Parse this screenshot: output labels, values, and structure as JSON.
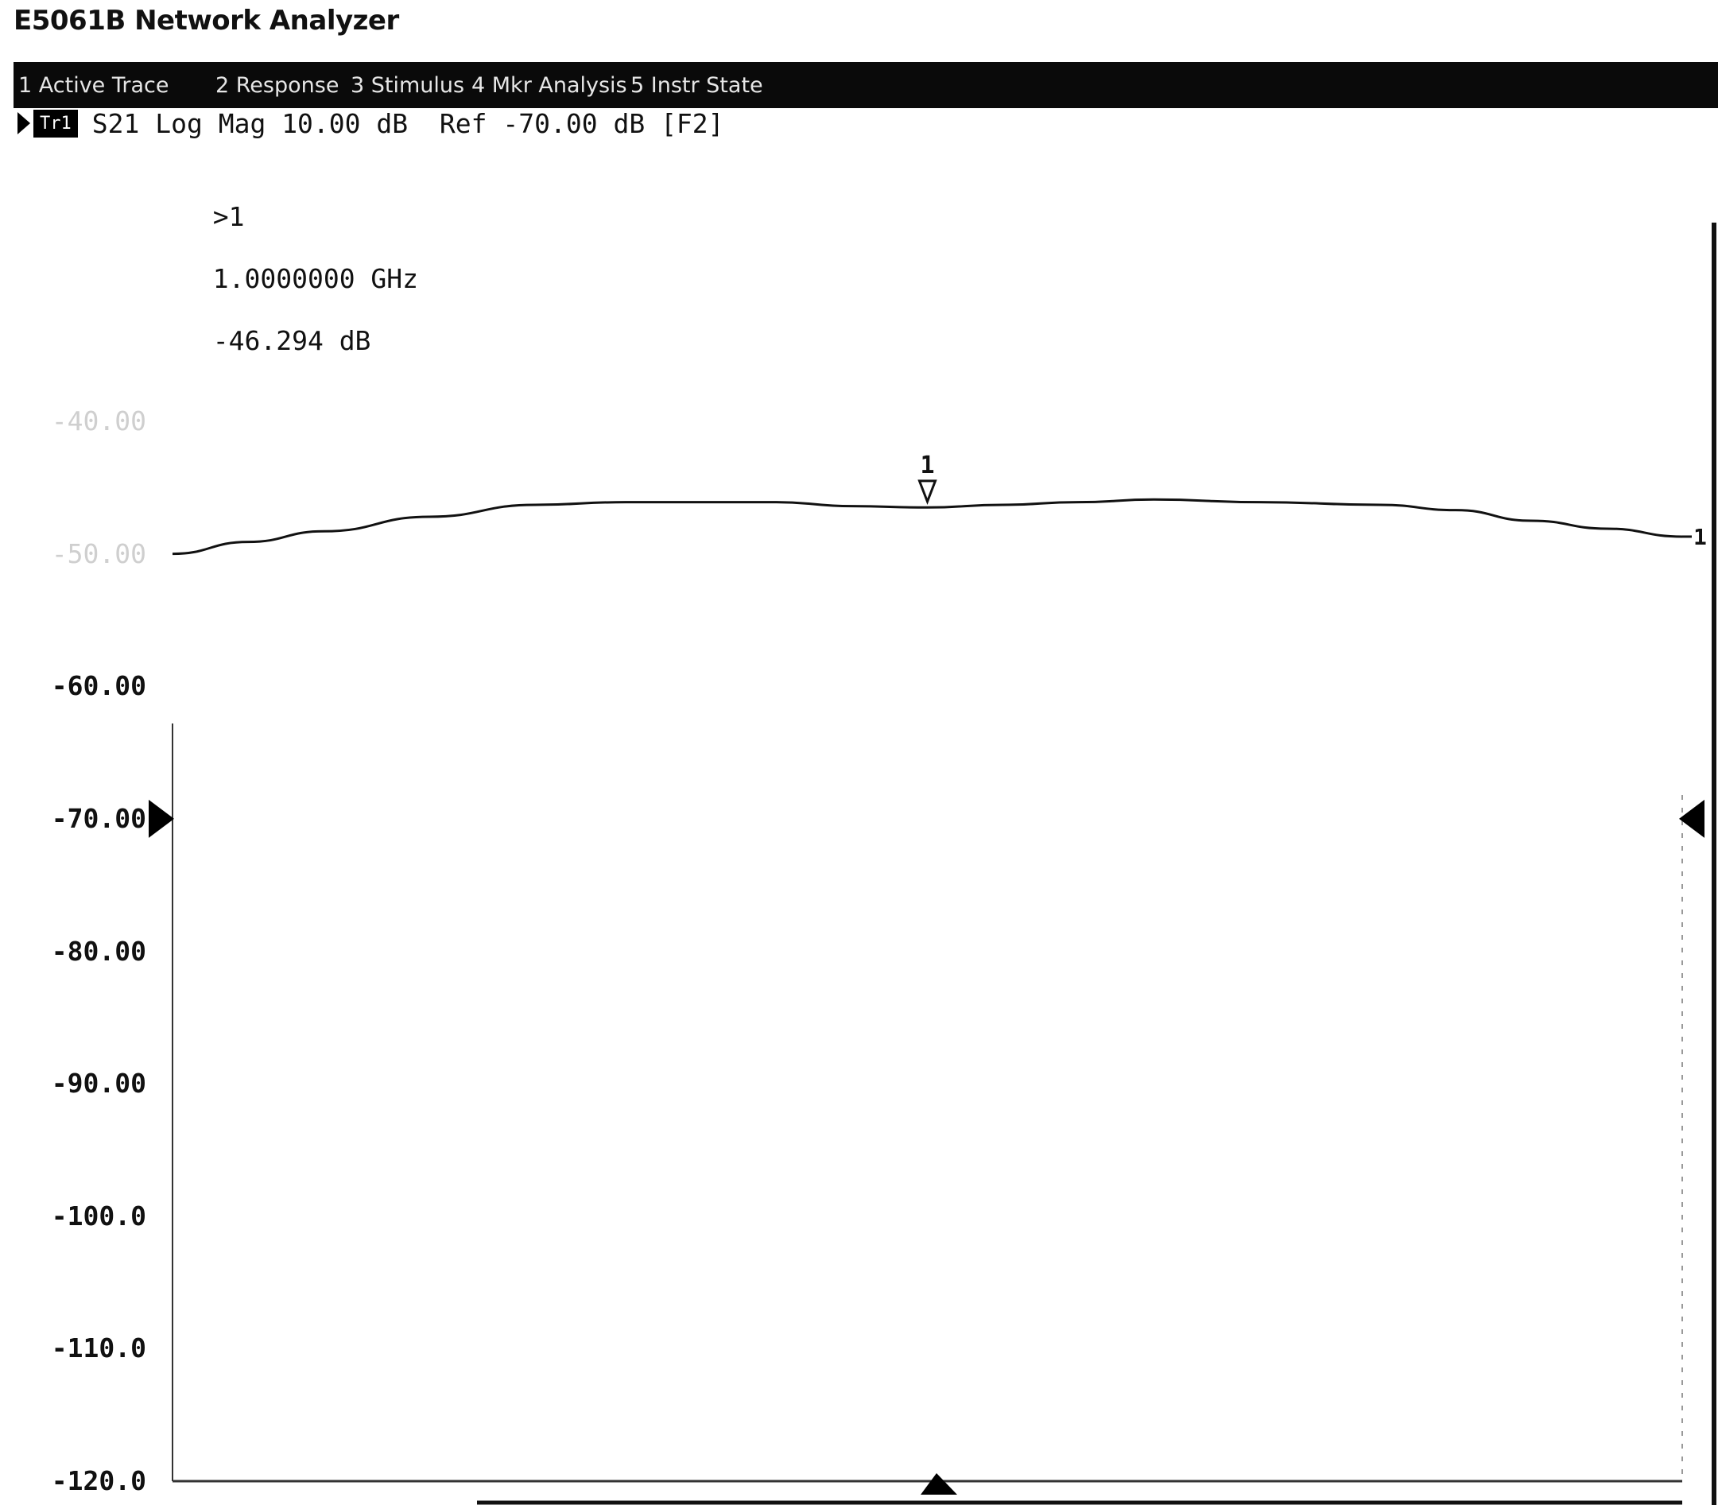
{
  "window": {
    "title": "E5061B Network Analyzer"
  },
  "menu": {
    "items": [
      {
        "label": "1 Active Trace"
      },
      {
        "label": "2 Response"
      },
      {
        "label": "3 Stimulus"
      },
      {
        "label": "4 Mkr Analysis"
      },
      {
        "label": "5 Instr State"
      }
    ]
  },
  "trace_status": {
    "badge": "Tr1",
    "param": "S21",
    "format": "Log Mag",
    "scale": "10.00 dB",
    "ref_label": "Ref",
    "ref_value": "-70.00 dB",
    "key": "[F2]"
  },
  "marker_readout": {
    "id": ">1",
    "frequency": "1.0000000 GHz",
    "value": "-46.294 dB"
  },
  "chart_data": {
    "type": "line",
    "title": "",
    "xlabel": "",
    "ylabel": "",
    "ylim": [
      -120,
      -40
    ],
    "yticks": [
      "-40.00",
      "-50.00",
      "-60.00",
      "-70.00",
      "-80.00",
      "-90.00",
      "-100.0",
      "-110.0",
      "-120.0"
    ],
    "reference_level": -70,
    "grid": false,
    "series": [
      {
        "x": [
          0,
          0.05,
          0.1,
          0.17,
          0.24,
          0.3,
          0.4,
          0.45,
          0.5,
          0.55,
          0.6,
          0.65,
          0.72,
          0.8,
          0.85,
          0.9,
          0.95,
          1.0
        ],
        "values": [
          -50.0,
          -49.1,
          -48.3,
          -47.2,
          -46.3,
          -46.1,
          -46.1,
          -46.4,
          -46.5,
          -46.3,
          -46.1,
          -45.9,
          -46.1,
          -46.3,
          -46.7,
          -47.5,
          -48.1,
          -48.7
        ]
      }
    ],
    "markers": [
      {
        "label": "1",
        "x": 0.5,
        "value": -46.294
      }
    ],
    "trace_end_label": "1"
  }
}
